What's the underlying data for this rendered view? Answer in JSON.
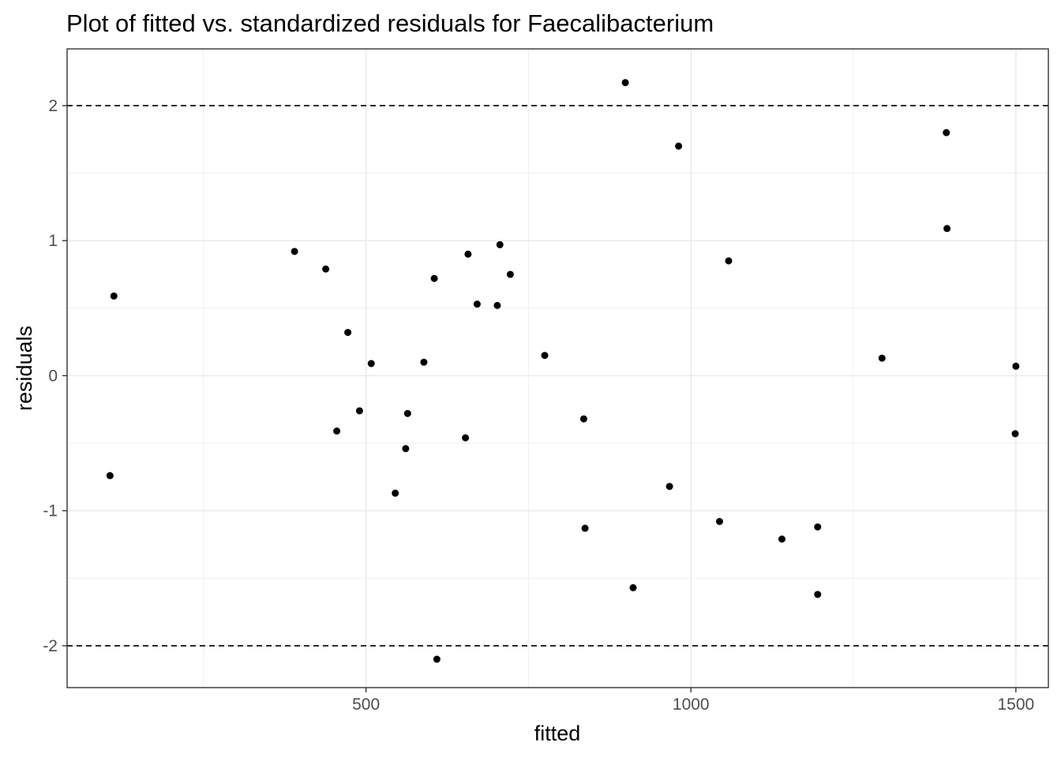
{
  "chart_data": {
    "type": "scatter",
    "title": "Plot of fitted vs. standardized residuals for Faecalibacterium",
    "xlabel": "fitted",
    "ylabel": "residuals",
    "xlim": [
      40,
      1550
    ],
    "ylim": [
      -2.31,
      2.42
    ],
    "x_ticks": [
      500,
      1000,
      1500
    ],
    "x_tick_labels": [
      "500",
      "1000",
      "1500"
    ],
    "x_minor_ticks": [
      250,
      750,
      1250
    ],
    "y_ticks": [
      -2,
      -1,
      0,
      1,
      2
    ],
    "y_tick_labels": [
      "-2",
      "-1",
      "0",
      "1",
      "2"
    ],
    "y_minor_ticks": [
      -1.5,
      -0.5,
      0.5,
      1.5
    ],
    "reference_lines": [
      2,
      -2
    ],
    "grid": true,
    "colors": {
      "points": "#000000",
      "grid": "#ebebeb",
      "panel_border": "#333333",
      "reference_line": "#000000"
    },
    "points": [
      {
        "x": 112,
        "y": 0.59
      },
      {
        "x": 106,
        "y": -0.74
      },
      {
        "x": 390,
        "y": 0.92
      },
      {
        "x": 438,
        "y": 0.79
      },
      {
        "x": 472,
        "y": 0.32
      },
      {
        "x": 508,
        "y": 0.09
      },
      {
        "x": 455,
        "y": -0.41
      },
      {
        "x": 490,
        "y": -0.26
      },
      {
        "x": 545,
        "y": -0.87
      },
      {
        "x": 561,
        "y": -0.54
      },
      {
        "x": 564,
        "y": -0.28
      },
      {
        "x": 589,
        "y": 0.1
      },
      {
        "x": 605,
        "y": 0.72
      },
      {
        "x": 609,
        "y": -2.1
      },
      {
        "x": 653,
        "y": -0.46
      },
      {
        "x": 657,
        "y": 0.9
      },
      {
        "x": 671,
        "y": 0.53
      },
      {
        "x": 702,
        "y": 0.52
      },
      {
        "x": 706,
        "y": 0.97
      },
      {
        "x": 722,
        "y": 0.75
      },
      {
        "x": 775,
        "y": 0.15
      },
      {
        "x": 835,
        "y": -0.32
      },
      {
        "x": 837,
        "y": -1.13
      },
      {
        "x": 899,
        "y": 2.17
      },
      {
        "x": 911,
        "y": -1.57
      },
      {
        "x": 981,
        "y": 1.7
      },
      {
        "x": 967,
        "y": -0.82
      },
      {
        "x": 1044,
        "y": -1.08
      },
      {
        "x": 1058,
        "y": 0.85
      },
      {
        "x": 1140,
        "y": -1.21
      },
      {
        "x": 1195,
        "y": -1.12
      },
      {
        "x": 1195,
        "y": -1.62
      },
      {
        "x": 1294,
        "y": 0.13
      },
      {
        "x": 1393,
        "y": 1.8
      },
      {
        "x": 1394,
        "y": 1.09
      },
      {
        "x": 1500,
        "y": 0.07
      },
      {
        "x": 1499,
        "y": -0.43
      }
    ]
  }
}
